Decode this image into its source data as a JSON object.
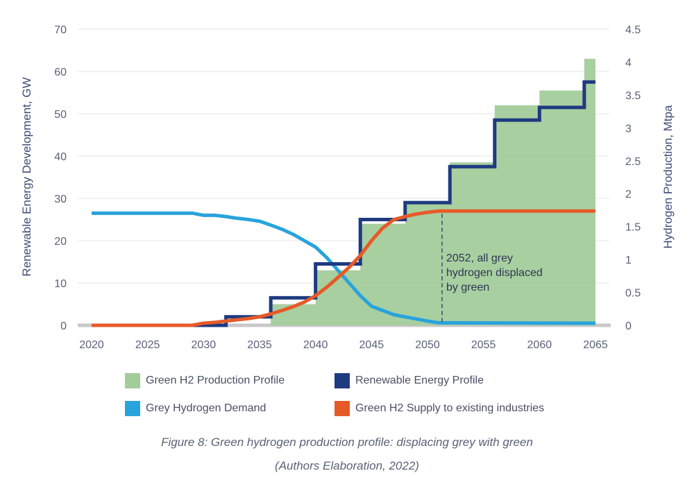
{
  "chart_data": {
    "type": "area",
    "title": "",
    "x_axis": {
      "label": "",
      "range": [
        2020,
        2065
      ],
      "ticks": [
        2020,
        2025,
        2030,
        2035,
        2040,
        2045,
        2050,
        2055,
        2060,
        2065
      ]
    },
    "y_left": {
      "label": "Renewable Energy Development, GW",
      "range": [
        0,
        70
      ],
      "ticks": [
        0,
        10,
        20,
        30,
        40,
        50,
        60,
        70
      ]
    },
    "y_right": {
      "label": "Hydrogen Production, Mtpa",
      "range": [
        0,
        4.5
      ],
      "ticks": [
        "0",
        "0.5",
        "1",
        "1.5",
        "2",
        "2.5",
        "3",
        "3.5",
        "4",
        "4.5"
      ]
    },
    "grid": true,
    "legend_position": "bottom",
    "series": [
      {
        "name": "Green H2 Production Profile",
        "type": "step-area",
        "axis": "left",
        "color": "#a3cc9b",
        "x": [
          2020,
          2035,
          2036,
          2039,
          2040,
          2044,
          2048,
          2050,
          2052,
          2055,
          2056,
          2059,
          2060,
          2063,
          2064,
          2065
        ],
        "values": [
          0,
          0,
          5,
          5,
          13,
          24,
          29,
          29,
          38.5,
          38.5,
          52,
          52,
          55.5,
          55.5,
          63,
          63
        ]
      },
      {
        "name": "Renewable Energy Profile",
        "type": "step-line",
        "axis": "left",
        "color": "#1e3a80",
        "x": [
          2020,
          2031,
          2032,
          2035,
          2036,
          2039,
          2040,
          2042,
          2044,
          2046,
          2047,
          2048,
          2051,
          2052,
          2054,
          2055,
          2056,
          2059,
          2060,
          2063,
          2064,
          2065
        ],
        "values": [
          0,
          0,
          2,
          2,
          6.5,
          6.5,
          14.5,
          14.5,
          25,
          25,
          25,
          29,
          29,
          37.5,
          37.5,
          37.5,
          48.5,
          48.5,
          51.5,
          51.5,
          57.5,
          57.5
        ]
      },
      {
        "name": "Grey Hydrogen Demand",
        "type": "line",
        "axis": "left",
        "color": "#29a3dc",
        "x": [
          2020,
          2029,
          2030,
          2031,
          2032,
          2033,
          2034,
          2035,
          2036,
          2037,
          2038,
          2039,
          2040,
          2041,
          2042,
          2043,
          2044,
          2045,
          2046,
          2047,
          2048,
          2049,
          2050,
          2051,
          2065
        ],
        "values": [
          26.5,
          26.5,
          26,
          26,
          25.7,
          25.3,
          25,
          24.6,
          23.7,
          22.7,
          21.5,
          20,
          18.5,
          16,
          13,
          10,
          7,
          4.5,
          3.5,
          2.5,
          2,
          1.5,
          1,
          0.6,
          0.5
        ]
      },
      {
        "name": "Green H2 Supply to existing industries",
        "type": "line",
        "axis": "left",
        "color": "#e65a28",
        "x": [
          2020,
          2029,
          2030,
          2031,
          2032,
          2033,
          2034,
          2035,
          2036,
          2037,
          2038,
          2039,
          2040,
          2041,
          2042,
          2043,
          2044,
          2045,
          2046,
          2047,
          2048,
          2049,
          2050,
          2051,
          2065
        ],
        "values": [
          0,
          0,
          0.5,
          0.7,
          1,
          1.3,
          1.6,
          2,
          2.7,
          3.5,
          4.4,
          5.5,
          7,
          9,
          11.3,
          13.7,
          16.5,
          20,
          23,
          25,
          25.7,
          26.3,
          26.7,
          27,
          27
        ]
      }
    ],
    "annotations": [
      {
        "x": 2051.3,
        "style": "dashed-vertical-line",
        "lines": [
          "2052, all grey",
          "hydrogen displaced",
          "by green"
        ]
      }
    ]
  },
  "legend": {
    "green_h2_label": "Green H2 Production Profile",
    "renewable_label": "Renewable Energy Profile",
    "grey_label": "Grey Hydrogen Demand",
    "supply_label": "Green H2 Supply to existing industries"
  },
  "caption": {
    "line1": "Figure 8: Green hydrogen production profile: displacing grey with green",
    "line2": "(Authors Elaboration, 2022)"
  }
}
